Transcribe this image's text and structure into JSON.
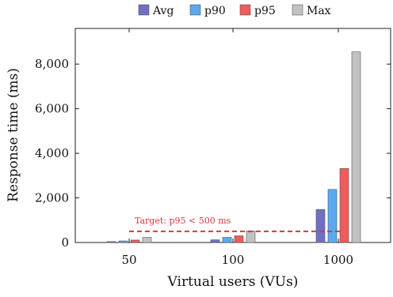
{
  "chart_data": {
    "type": "bar",
    "categories": [
      "50",
      "100",
      "1000"
    ],
    "series": [
      {
        "name": "Avg",
        "values": [
          40,
          120,
          1480
        ],
        "color": "#6f6fc4"
      },
      {
        "name": "p90",
        "values": [
          70,
          230,
          2380
        ],
        "color": "#5aaaf0"
      },
      {
        "name": "p95",
        "values": [
          110,
          300,
          3320
        ],
        "color": "#ee5c5c"
      },
      {
        "name": "Max",
        "values": [
          230,
          520,
          8550
        ],
        "color": "#c2c2c2"
      }
    ],
    "xlabel": "Virtual users (VUs)",
    "ylabel": "Response time (ms)",
    "ylim": [
      0,
      9600
    ],
    "yticks": [
      0,
      2000,
      4000,
      6000,
      8000
    ],
    "ytick_labels": [
      "0",
      "2,000",
      "4,000",
      "6,000",
      "8,000"
    ],
    "legend_position": "top",
    "grid": false,
    "reference_line": {
      "y": 500,
      "label": "Target: p95 < 500 ms",
      "color": "#d9363e",
      "style": "dashed"
    }
  }
}
